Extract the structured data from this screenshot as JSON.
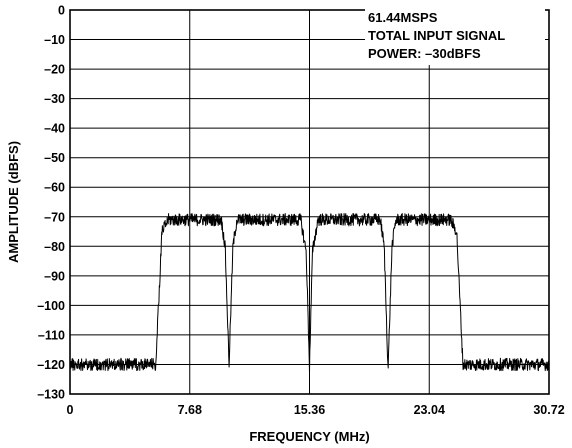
{
  "chart_data": {
    "type": "line",
    "title": "",
    "xlabel": "FREQUENCY (MHz)",
    "ylabel": "AMPLITUDE (dBFS)",
    "xlim": [
      0,
      30.72
    ],
    "ylim": [
      -130,
      0
    ],
    "grid": true,
    "x_ticks": [
      "0",
      "7.68",
      "15.36",
      "23.04",
      "30.72"
    ],
    "x_tick_values": [
      0,
      7.68,
      15.36,
      23.04,
      30.72
    ],
    "y_ticks": [
      "0",
      "–10",
      "–20",
      "–30",
      "–40",
      "–50",
      "–60",
      "–70",
      "–80",
      "–90",
      "–100",
      "–110",
      "–120",
      "–130"
    ],
    "y_tick_values": [
      0,
      -10,
      -20,
      -30,
      -40,
      -50,
      -60,
      -70,
      -80,
      -90,
      -100,
      -110,
      -120,
      -130
    ],
    "annotations": [
      "61.44MSPS",
      "TOTAL INPUT SIGNAL",
      "POWER: –30dBFS"
    ],
    "annotation_placement": "top-right",
    "series": [
      {
        "color": "#000000",
        "x": [
          0,
          5.5,
          5.9,
          6.3,
          9.7,
          9.95,
          10.2,
          10.45,
          10.7,
          14.8,
          15.15,
          15.36,
          15.55,
          15.9,
          19.9,
          20.15,
          20.4,
          20.65,
          20.9,
          24.4,
          24.8,
          25.2,
          30.72
        ],
        "values": [
          -120,
          -120,
          -75,
          -71,
          -71,
          -80,
          -120,
          -80,
          -71,
          -71,
          -82,
          -121,
          -82,
          -71,
          -71,
          -80,
          -122,
          -80,
          -71,
          -71,
          -75,
          -120,
          -120
        ]
      }
    ]
  }
}
